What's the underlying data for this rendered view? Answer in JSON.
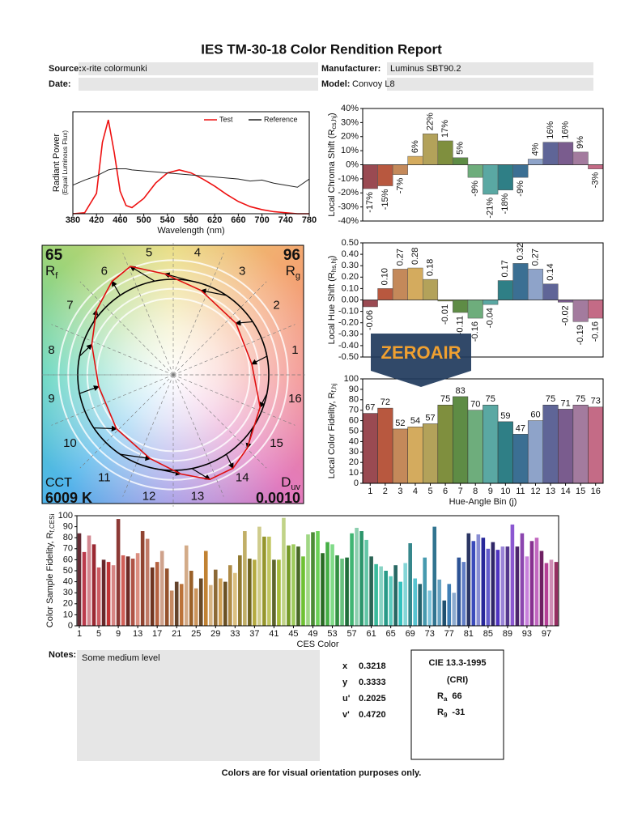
{
  "title": "IES TM-30-18 Color Rendition Report",
  "fields": [
    {
      "label": "Source:",
      "value": "x-rite colormunki"
    },
    {
      "label": "Manufacturer:",
      "value": "Luminus SBT90.2"
    },
    {
      "label": "Date:"
    },
    {
      "label": "Model:",
      "value": "Convoy L8"
    }
  ],
  "chart_data": [
    {
      "type": "line",
      "xlabel": "Wavelength (nm)",
      "ylabel": "Radiant Power",
      "ylabel2": "(Equal Luminous Flux)",
      "x": [
        380,
        400,
        420,
        430,
        440,
        450,
        460,
        470,
        480,
        500,
        520,
        540,
        560,
        580,
        600,
        620,
        640,
        660,
        680,
        700,
        720,
        740,
        760,
        780
      ],
      "xlim": [
        380,
        780
      ],
      "xticks": [
        380,
        420,
        460,
        500,
        540,
        580,
        620,
        660,
        700,
        740,
        780
      ],
      "ylim": [
        0,
        1
      ],
      "legend": "upper right",
      "series": [
        {
          "name": "Test",
          "color": "#ee1111",
          "values": [
            0,
            0.01,
            0.2,
            0.7,
            0.92,
            0.6,
            0.22,
            0.08,
            0.06,
            0.15,
            0.3,
            0.4,
            0.43,
            0.4,
            0.34,
            0.27,
            0.19,
            0.12,
            0.07,
            0.04,
            0.02,
            0.01,
            0,
            0
          ]
        },
        {
          "name": "Reference",
          "color": "#222222",
          "values": [
            0.28,
            0.33,
            0.37,
            0.4,
            0.43,
            0.44,
            0.44,
            0.44,
            0.43,
            0.42,
            0.41,
            0.4,
            0.39,
            0.38,
            0.37,
            0.36,
            0.35,
            0.34,
            0.32,
            0.33,
            0.3,
            0.28,
            0.26,
            0.34
          ]
        }
      ]
    },
    {
      "type": "bar",
      "ylabel": "Local Chroma Shift (R",
      "ylabel_sub": "cs,hj",
      "ylabel_tail": ")",
      "values": [
        -17,
        -15,
        -7,
        6,
        22,
        17,
        5,
        -9,
        -21,
        -18,
        -9,
        4,
        16,
        16,
        9,
        -3
      ],
      "value_labels": [
        "-17%",
        "-15%",
        "-7%",
        "6%",
        "22%",
        "17%",
        "5%",
        "-9%",
        "-21%",
        "-18%",
        "-9%",
        "4%",
        "16%",
        "16%",
        "9%",
        "-3%"
      ],
      "ylim": [
        -40,
        40
      ],
      "yticks": [
        {
          "value": 40,
          "label": "40%"
        },
        {
          "value": 30,
          "label": "30%"
        },
        {
          "value": 20,
          "label": "20%"
        },
        {
          "value": 10,
          "label": "10%"
        },
        {
          "value": 0,
          "label": "0%"
        },
        {
          "value": -10,
          "label": "-10%"
        },
        {
          "value": -20,
          "label": "-20%"
        },
        {
          "value": -30,
          "label": "-30%"
        },
        {
          "value": -40,
          "label": "-40%"
        }
      ],
      "colors": [
        "#9a4a52",
        "#b8583f",
        "#c4895a",
        "#d4ab5e",
        "#b3a25a",
        "#7f8f3e",
        "#5e8c45",
        "#6ead7c",
        "#5aa8a3",
        "#2f7f86",
        "#3b6f93",
        "#8ea3c9",
        "#5f6597",
        "#7a5c8e",
        "#a37b9e",
        "#c46b86"
      ]
    },
    {
      "type": "bar",
      "ylabel": "Local Hue Shift (R",
      "ylabel_sub": "hs,hj",
      "ylabel_tail": ")",
      "values": [
        -0.06,
        0.1,
        0.27,
        0.28,
        0.18,
        -0.01,
        -0.11,
        -0.16,
        -0.04,
        0.17,
        0.32,
        0.27,
        0.14,
        -0.02,
        -0.19,
        -0.16
      ],
      "value_labels": [
        "-0.06",
        "0.10",
        "0.27",
        "0.28",
        "0.18",
        "-0.01",
        "-0.11",
        "-0.16",
        "-0.04",
        "0.17",
        "0.32",
        "0.27",
        "0.14",
        "-0.02",
        "-0.19",
        "-0.16"
      ],
      "ylim": [
        -0.5,
        0.5
      ],
      "yticks": [
        {
          "value": 0.5,
          "label": "0.50"
        },
        {
          "value": 0.4,
          "label": "0.40"
        },
        {
          "value": 0.3,
          "label": "0.30"
        },
        {
          "value": 0.2,
          "label": "0.20"
        },
        {
          "value": 0.1,
          "label": "0.10"
        },
        {
          "value": 0,
          "label": "0.00"
        },
        {
          "value": -0.1,
          "label": "-0.10"
        },
        {
          "value": -0.2,
          "label": "-0.20"
        },
        {
          "value": -0.3,
          "label": "-0.30"
        },
        {
          "value": -0.4,
          "label": "-0.40"
        },
        {
          "value": -0.5,
          "label": "-0.50"
        }
      ],
      "colors": [
        "#9a4a52",
        "#b8583f",
        "#c4895a",
        "#d4ab5e",
        "#b3a25a",
        "#7f8f3e",
        "#5e8c45",
        "#6ead7c",
        "#5aa8a3",
        "#2f7f86",
        "#3b6f93",
        "#8ea3c9",
        "#5f6597",
        "#7a5c8e",
        "#a37b9e",
        "#c46b86"
      ]
    },
    {
      "type": "bar",
      "ylabel": "Local Color Fidelity, R",
      "ylabel_sub": "f,hj",
      "xlabel": "Hue-Angle Bin (j)",
      "categories": [
        1,
        2,
        3,
        4,
        5,
        6,
        7,
        8,
        9,
        10,
        11,
        12,
        13,
        14,
        15,
        16
      ],
      "values": [
        67,
        72,
        52,
        54,
        57,
        75,
        83,
        70,
        75,
        59,
        47,
        60,
        75,
        71,
        75,
        73
      ],
      "ylim": [
        0,
        100
      ],
      "yticks": [
        0,
        10,
        20,
        30,
        40,
        50,
        60,
        70,
        80,
        90,
        100
      ],
      "colors": [
        "#9a4a52",
        "#b8583f",
        "#c4895a",
        "#d4ab5e",
        "#b3a25a",
        "#7f8f3e",
        "#5e8c45",
        "#6ead7c",
        "#5aa8a3",
        "#2f7f86",
        "#3b6f93",
        "#8ea3c9",
        "#5f6597",
        "#7a5c8e",
        "#a37b9e",
        "#c46b86"
      ]
    },
    {
      "type": "bar",
      "ylabel": "Color Sample Fidelity, R",
      "ylabel_sub": "f,CESi",
      "xlabel": "CES Color",
      "categories": [
        1,
        null,
        null,
        null,
        5,
        null,
        null,
        null,
        9,
        null,
        null,
        null,
        13,
        null,
        null,
        null,
        17,
        null,
        null,
        null,
        21,
        null,
        null,
        null,
        25,
        null,
        null,
        null,
        29,
        null,
        null,
        null,
        33,
        null,
        null,
        null,
        37,
        null,
        null,
        null,
        41,
        null,
        null,
        null,
        45,
        null,
        null,
        null,
        49,
        null,
        null,
        null,
        53,
        null,
        null,
        null,
        57,
        null,
        null,
        null,
        61,
        null,
        null,
        null,
        65,
        null,
        null,
        null,
        69,
        null,
        null,
        null,
        73,
        null,
        null,
        null,
        77,
        null,
        null,
        null,
        81,
        null,
        null,
        null,
        85,
        null,
        null,
        null,
        89,
        null,
        null,
        null,
        93,
        null,
        null,
        null,
        97,
        null,
        null
      ],
      "values": [
        84,
        67,
        82,
        74,
        53,
        60,
        58,
        55,
        97,
        64,
        63,
        61,
        66,
        86,
        79,
        53,
        58,
        68,
        52,
        32,
        40,
        38,
        73,
        50,
        34,
        43,
        68,
        37,
        51,
        43,
        40,
        55,
        48,
        64,
        86,
        61,
        60,
        90,
        81,
        81,
        60,
        60,
        98,
        73,
        74,
        72,
        63,
        83,
        85,
        86,
        66,
        76,
        74,
        64,
        61,
        62,
        84,
        89,
        86,
        78,
        63,
        56,
        54,
        50,
        45,
        55,
        40,
        57,
        75,
        43,
        38,
        62,
        32,
        90,
        42,
        23,
        38,
        30,
        62,
        58,
        84,
        77,
        83,
        80,
        70,
        76,
        69,
        72,
        72,
        92,
        72,
        84,
        63,
        77,
        80,
        68,
        57,
        60,
        58
      ],
      "ylim": [
        0,
        100
      ],
      "yticks": [
        0,
        10,
        20,
        30,
        40,
        50,
        60,
        70,
        80,
        90,
        100
      ]
    }
  ],
  "color_vector_graphic": {
    "rf": {
      "symbol": "R",
      "sub": "f",
      "value": 65
    },
    "rg": {
      "symbol": "R",
      "sub": "g",
      "value": 96
    },
    "cct": {
      "label": "CCT",
      "value": "6009 K"
    },
    "duv": {
      "symbol": "D",
      "sub": "uv",
      "value": "0.0010"
    }
  },
  "watermark": "ZEROAIR",
  "notes": {
    "label": "Notes:",
    "text": "Some medium level"
  },
  "chromaticity": [
    {
      "label": "x",
      "value": "0.3218"
    },
    {
      "label": "y",
      "value": "0.3333"
    },
    {
      "label": "u'",
      "value": "0.2025"
    },
    {
      "label": "v'",
      "value": "0.4720"
    }
  ],
  "cri": {
    "title": "CIE 13.3-1995",
    "subtitle": "(CRI)",
    "ra": {
      "symbol": "R",
      "sub": "a",
      "value": 66
    },
    "r9": {
      "symbol": "R",
      "sub": "9",
      "value": -31
    }
  },
  "footer": "Colors are for visual orientation purposes only."
}
